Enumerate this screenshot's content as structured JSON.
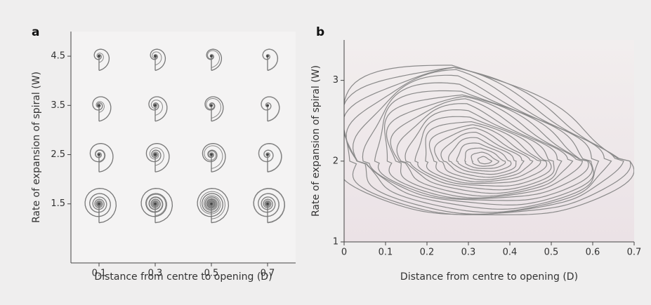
{
  "chart_data": [
    {
      "type": "grid",
      "label": "a",
      "x_label": "Distance from centre to opening (D)",
      "y_label": "Rate of expansion of spiral (W)",
      "xlim": [
        0,
        0.8
      ],
      "xticks": [
        0.1,
        0.3,
        0.5,
        0.7
      ],
      "ylim": [
        0.3,
        5.0
      ],
      "yticks": [
        1.5,
        2.5,
        3.5,
        4.5
      ]
    },
    {
      "type": "contour",
      "label": "b",
      "x_label": "Distance from centre to opening (D)",
      "y_label": "Rate of expansion of spiral (W)",
      "xlim": [
        0,
        0.7
      ],
      "xticks": [
        0,
        0.1,
        0.2,
        0.3,
        0.4,
        0.5,
        0.6,
        0.7
      ],
      "ylim": [
        1,
        3.5
      ],
      "yticks": [
        1,
        2,
        3
      ]
    }
  ]
}
